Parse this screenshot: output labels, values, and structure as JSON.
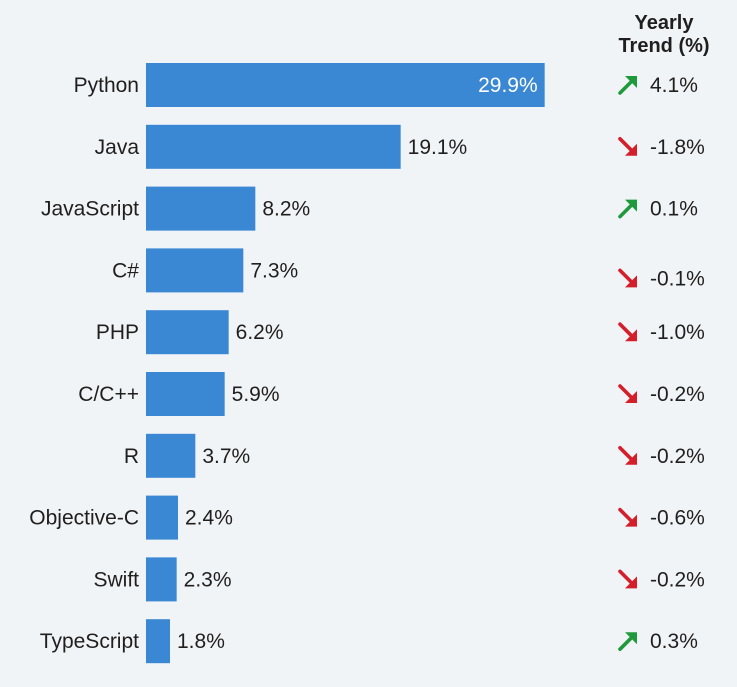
{
  "chart_data": {
    "type": "bar",
    "orientation": "horizontal",
    "categories": [
      "Python",
      "Java",
      "JavaScript",
      "C#",
      "PHP",
      "C/C++",
      "R",
      "Objective-C",
      "Swift",
      "TypeScript"
    ],
    "values": [
      29.9,
      19.1,
      8.2,
      7.3,
      6.2,
      5.9,
      3.7,
      2.4,
      2.3,
      1.8
    ],
    "value_labels": [
      "29.9%",
      "19.1%",
      "8.2%",
      "7.3%",
      "6.2%",
      "5.9%",
      "3.7%",
      "2.4%",
      "2.3%",
      "1.8%"
    ],
    "trend_title_line1": "Yearly",
    "trend_title_line2": "Trend (%)",
    "trend_values": [
      4.1,
      -1.8,
      0.1,
      -0.1,
      -1.0,
      -0.2,
      -0.2,
      -0.6,
      -0.2,
      0.3
    ],
    "trend_labels": [
      "4.1%",
      "-1.8%",
      "0.1%",
      "-0.1%",
      "-1.0%",
      "-0.2%",
      "-0.2%",
      "-0.6%",
      "-0.2%",
      "0.3%"
    ],
    "xlim": [
      0,
      30
    ],
    "grid": false,
    "legend": "none",
    "colors": {
      "bar": "#3a87d4",
      "up": "#1e9a3c",
      "down": "#d41f2b"
    }
  }
}
